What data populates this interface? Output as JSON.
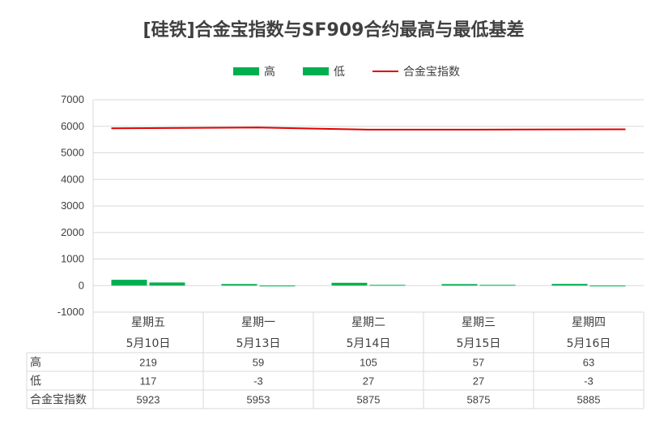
{
  "chart_data": {
    "type": "bar",
    "title": "[硅铁]合金宝指数与SF909合约最高与最低基差",
    "categories": [
      [
        "星期五",
        "5月10日"
      ],
      [
        "星期一",
        "5月13日"
      ],
      [
        "星期二",
        "5月14日"
      ],
      [
        "星期三",
        "5月15日"
      ],
      [
        "星期四",
        "5月16日"
      ]
    ],
    "series": [
      {
        "name": "高",
        "kind": "bar",
        "color": "#00b050",
        "values": [
          219,
          59,
          105,
          57,
          63
        ]
      },
      {
        "name": "低",
        "kind": "bar",
        "color": "#00b050",
        "values": [
          117,
          -3,
          27,
          27,
          -3
        ]
      },
      {
        "name": "合金宝指数",
        "kind": "line",
        "color": "#e00000",
        "values": [
          5923,
          5953,
          5875,
          5875,
          5885
        ]
      }
    ],
    "ylim": [
      -1000,
      7000
    ],
    "yticks": [
      7000,
      6000,
      5000,
      4000,
      3000,
      2000,
      1000,
      0,
      -1000
    ],
    "grid": true,
    "legend_position": "top",
    "data_table": true
  }
}
